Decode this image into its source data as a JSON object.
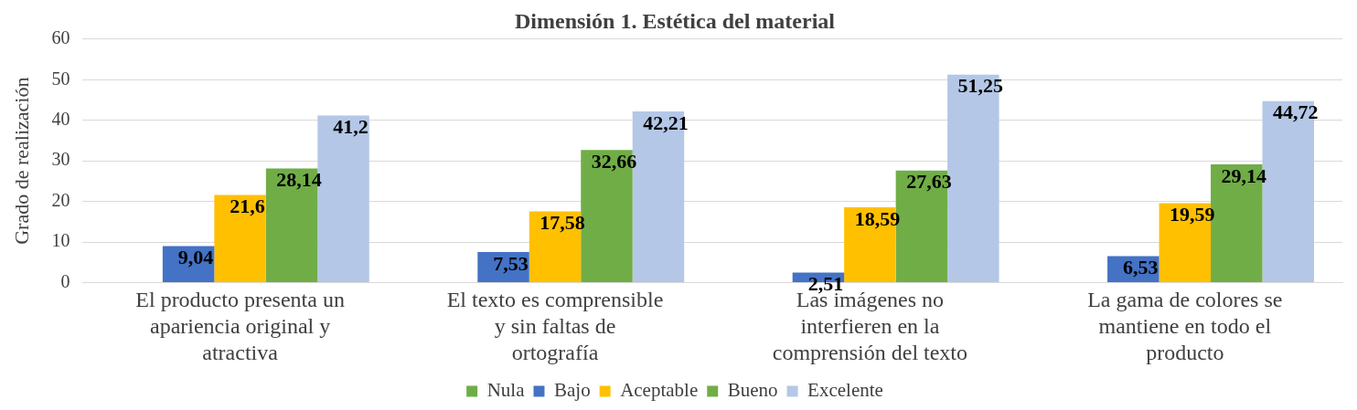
{
  "chart_data": {
    "type": "bar",
    "title": "Dimensión 1. Estética del material",
    "ylabel": "Grado de realización",
    "categories": [
      "El producto presenta un apariencia original y atractiva",
      "El texto es comprensible y sin faltas de ortografía",
      "Las imágenes no interfieren en la comprensión del texto",
      "La gama de colores se mantiene en todo el producto"
    ],
    "series": [
      {
        "name": "Nula",
        "color": "#70ad47",
        "values": [
          0,
          0,
          0,
          0
        ],
        "value_labels": [
          null,
          null,
          null,
          null
        ]
      },
      {
        "name": "Bajo",
        "color": "#4472c4",
        "values": [
          9.04,
          7.53,
          2.51,
          6.53
        ],
        "value_labels": [
          "9,04",
          "7,53",
          "2,51",
          "6,53"
        ]
      },
      {
        "name": "Aceptable",
        "color": "#ffc000",
        "values": [
          21.6,
          17.58,
          18.59,
          19.59
        ],
        "value_labels": [
          "21,6",
          "17,58",
          "18,59",
          "19,59"
        ]
      },
      {
        "name": "Bueno",
        "color": "#70ad47",
        "values": [
          28.14,
          32.66,
          27.63,
          29.14
        ],
        "value_labels": [
          "28,14",
          "32,66",
          "27,63",
          "29,14"
        ]
      },
      {
        "name": "Excelente",
        "color": "#b4c7e7",
        "values": [
          41.2,
          42.21,
          51.25,
          44.72
        ],
        "value_labels": [
          "41,2",
          "42,21",
          "51,25",
          "44,72"
        ]
      }
    ],
    "ylim": [
      0,
      60
    ],
    "yticks": [
      0,
      10,
      20,
      30,
      40,
      50,
      60
    ],
    "grid": "y",
    "legend": "bottom"
  }
}
